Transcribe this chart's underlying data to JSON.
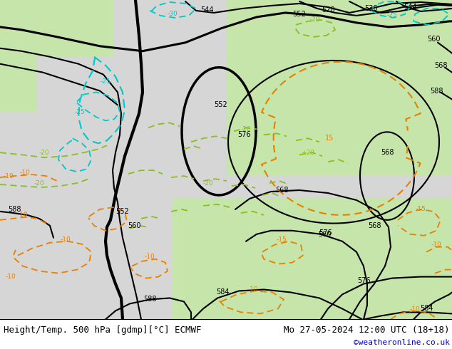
{
  "title_left": "Height/Temp. 500 hPa [gdmp][°C] ECMWF",
  "title_right": "Mo 27-05-2024 12:00 UTC (18+18)",
  "credit": "©weatheronline.co.uk",
  "bg_gray": [
    0.84,
    0.84,
    0.84
  ],
  "bg_green": [
    0.78,
    0.9,
    0.67
  ],
  "bg_green2": [
    0.82,
    0.93,
    0.72
  ],
  "title_fontsize": 9,
  "credit_fontsize": 8,
  "credit_color": "#0000cc",
  "z500_color": "#000000",
  "temp_orange": "#e88000",
  "temp_cyan": "#00c8c8",
  "temp_green": "#88c020"
}
